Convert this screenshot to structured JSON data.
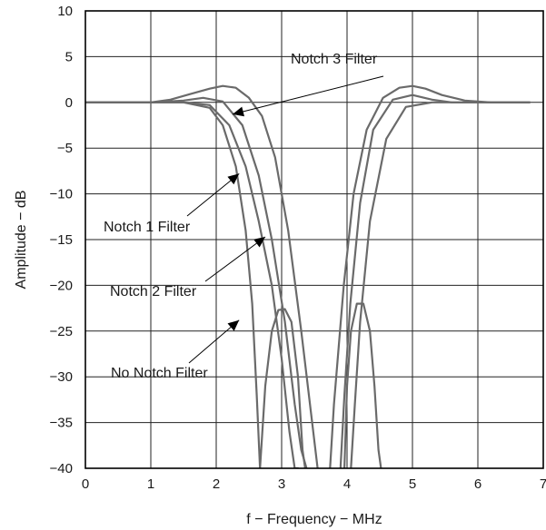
{
  "chart_data": {
    "type": "line",
    "title": "",
    "xlabel": "f − Frequency − MHz",
    "ylabel": "Amplitude − dB",
    "xlim": [
      0,
      7
    ],
    "ylim": [
      -40,
      10
    ],
    "x_ticks": [
      0,
      1,
      2,
      3,
      4,
      5,
      6,
      7
    ],
    "y_ticks": [
      10,
      5,
      0,
      -5,
      -10,
      -15,
      -20,
      -25,
      -30,
      -35,
      -40
    ],
    "grid": true,
    "legend": "none",
    "series": [
      {
        "name": "No Notch Filter",
        "x": [
          0,
          1.0,
          1.5,
          1.9,
          2.1,
          2.3,
          2.45,
          2.55,
          2.62,
          2.67,
          2.75,
          2.85,
          2.95,
          3.05,
          3.15,
          3.25,
          3.32,
          3.36
        ],
        "y": [
          0,
          0,
          0,
          -0.6,
          -2.5,
          -7,
          -14,
          -22,
          -32,
          -40,
          -31,
          -25,
          -22.7,
          -22.6,
          -24,
          -30,
          -38,
          -40
        ]
      },
      {
        "name": "No Notch Filter",
        "x": [
          3.96,
          4.0,
          4.06,
          4.15,
          4.25,
          4.35,
          4.42,
          4.48,
          4.52
        ],
        "y": [
          -40,
          -31,
          -25,
          -22,
          -22,
          -25,
          -31,
          -38,
          -40
        ]
      },
      {
        "name": "Notch 1 Filter",
        "x": [
          0,
          1.0,
          1.5,
          1.9,
          2.2,
          2.45,
          2.65,
          2.85,
          3.0,
          3.12,
          3.2,
          3.26
        ],
        "y": [
          0,
          0,
          0,
          -0.3,
          -2.5,
          -7,
          -13,
          -20,
          -28,
          -36,
          -40,
          -40
        ],
        "x2": [
          4.06,
          4.12,
          4.2,
          4.35,
          4.6,
          4.9,
          5.3,
          5.7,
          6.0,
          6.8
        ],
        "y2": [
          -40,
          -33,
          -24,
          -13,
          -4,
          -0.5,
          0,
          0,
          0,
          0
        ]
      },
      {
        "name": "Notch 2 Filter",
        "x": [
          0,
          1.0,
          1.5,
          1.8,
          2.1,
          2.4,
          2.65,
          2.85,
          3.05,
          3.2,
          3.3,
          3.38
        ],
        "y": [
          0,
          0,
          0.2,
          0.5,
          0.1,
          -2.5,
          -8,
          -15,
          -24,
          -33,
          -38,
          -40
        ],
        "x2": [
          3.9,
          3.96,
          4.05,
          4.2,
          4.4,
          4.7,
          5.0,
          5.3,
          5.6,
          6.0,
          6.8
        ],
        "y2": [
          -40,
          -32,
          -22,
          -11,
          -3,
          0.3,
          0.8,
          0.3,
          0,
          0,
          0
        ]
      },
      {
        "name": "Notch 3 Filter",
        "x": [
          0,
          1.0,
          1.3,
          1.6,
          1.9,
          2.1,
          2.3,
          2.5,
          2.7,
          2.9,
          3.1,
          3.3,
          3.45,
          3.55
        ],
        "y": [
          0,
          0,
          0.3,
          0.9,
          1.5,
          1.8,
          1.6,
          0.5,
          -1.5,
          -6,
          -14,
          -25,
          -34,
          -40
        ],
        "x2": [
          3.74,
          3.8,
          3.95,
          4.1,
          4.3,
          4.55,
          4.8,
          5.0,
          5.2,
          5.45,
          5.8,
          6.2,
          6.8
        ],
        "y2": [
          -40,
          -33,
          -20,
          -10,
          -3,
          0.5,
          1.6,
          1.8,
          1.5,
          0.8,
          0.2,
          0,
          0
        ]
      }
    ],
    "annotations": [
      {
        "text": "Notch 3 Filter",
        "arrow_to": [
          2.25,
          -1.3
        ]
      },
      {
        "text": "Notch 1 Filter",
        "arrow_to": [
          2.35,
          -7.8
        ]
      },
      {
        "text": "Notch 2 Filter",
        "arrow_to": [
          2.75,
          -14.7
        ]
      },
      {
        "text": "No Notch Filter",
        "arrow_to": [
          2.35,
          -23.8
        ]
      }
    ]
  }
}
